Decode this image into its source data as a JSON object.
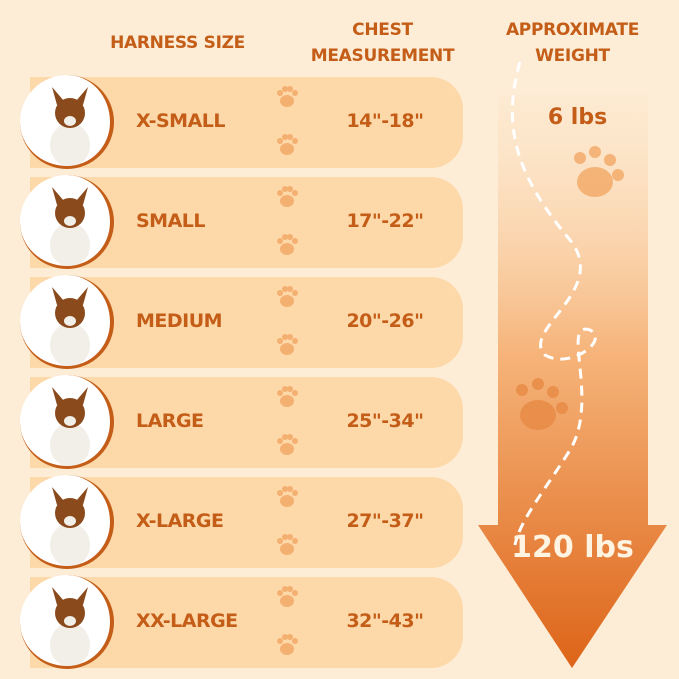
{
  "headers": {
    "size": "HARNESS SIZE",
    "chest": "CHEST\nMEASUREMENT",
    "weight": "APPROXIMATE\nWEIGHT"
  },
  "rows": [
    {
      "size": "X-SMALL",
      "chest": "14\"-18\"",
      "dog": "papillon"
    },
    {
      "size": "SMALL",
      "chest": "17\"-22\"",
      "dog": "jack-russell"
    },
    {
      "size": "MEDIUM",
      "chest": "20\"-26\"",
      "dog": "corgi"
    },
    {
      "size": "LARGE",
      "chest": "25\"-34\"",
      "dog": "border-collie"
    },
    {
      "size": "X-LARGE",
      "chest": "27\"-37\"",
      "dog": "german-shepherd"
    },
    {
      "size": "XX-LARGE",
      "chest": "32\"-43\"",
      "dog": "bernese-mountain-dog"
    }
  ],
  "weight": {
    "min": "6 lbs",
    "max": "120 lbs"
  },
  "colors": {
    "background": "#fdecd6",
    "row": "#fdd9aa",
    "text": "#c45d17",
    "arrow_top": "#fde0bd",
    "arrow_bottom": "#dd6418"
  }
}
